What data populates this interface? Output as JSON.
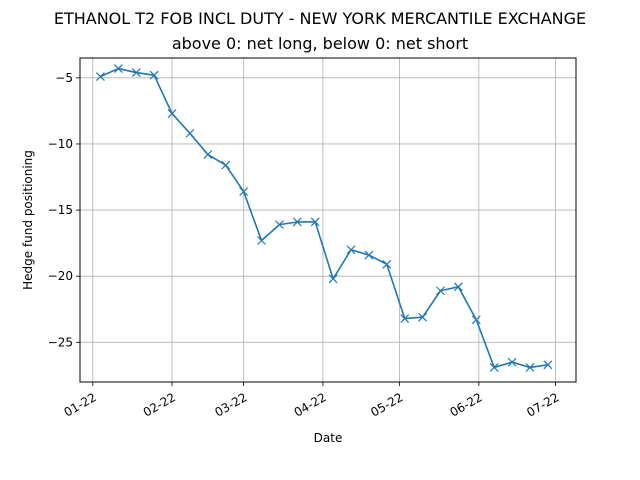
{
  "chart_data": {
    "type": "line",
    "title": "ETHANOL T2 FOB INCL DUTY - NEW YORK MERCANTILE EXCHANGE",
    "subtitle": "above 0: net long, below 0: net short",
    "xlabel": "Date",
    "ylabel": "Hedge fund positioning",
    "x_tick_labels": [
      "01-22",
      "02-22",
      "03-22",
      "04-22",
      "05-22",
      "06-22",
      "07-22"
    ],
    "x_tick_dates": [
      "2022-01-01",
      "2022-02-01",
      "2022-03-01",
      "2022-04-01",
      "2022-05-01",
      "2022-06-01",
      "2022-07-01"
    ],
    "y_ticks": [
      -5,
      -10,
      -15,
      -20,
      -25
    ],
    "y_tick_labels": [
      "−5",
      "−10",
      "−15",
      "−20",
      "−25"
    ],
    "xlim": [
      "2021-12-27",
      "2022-07-09"
    ],
    "ylim": [
      -28.0,
      -3.5
    ],
    "grid": true,
    "marker": "x",
    "color": "#1f77b4",
    "series": [
      {
        "x": [
          "2022-01-04",
          "2022-01-11",
          "2022-01-18",
          "2022-01-25",
          "2022-02-01",
          "2022-02-08",
          "2022-02-15",
          "2022-02-22",
          "2022-03-01",
          "2022-03-08",
          "2022-03-15",
          "2022-03-22",
          "2022-03-29",
          "2022-04-05",
          "2022-04-12",
          "2022-04-19",
          "2022-04-26",
          "2022-05-03",
          "2022-05-10",
          "2022-05-17",
          "2022-05-24",
          "2022-05-31",
          "2022-06-07",
          "2022-06-14",
          "2022-06-21",
          "2022-06-28"
        ],
        "values": [
          -4.9,
          -4.3,
          -4.6,
          -4.8,
          -7.7,
          -9.2,
          -10.8,
          -11.6,
          -13.6,
          -17.3,
          -16.1,
          -15.9,
          -15.9,
          -20.2,
          -18.0,
          -18.4,
          -19.1,
          -23.2,
          -23.1,
          -21.1,
          -20.8,
          -23.3,
          -26.9,
          -26.5,
          -26.9,
          -26.7
        ]
      }
    ]
  }
}
